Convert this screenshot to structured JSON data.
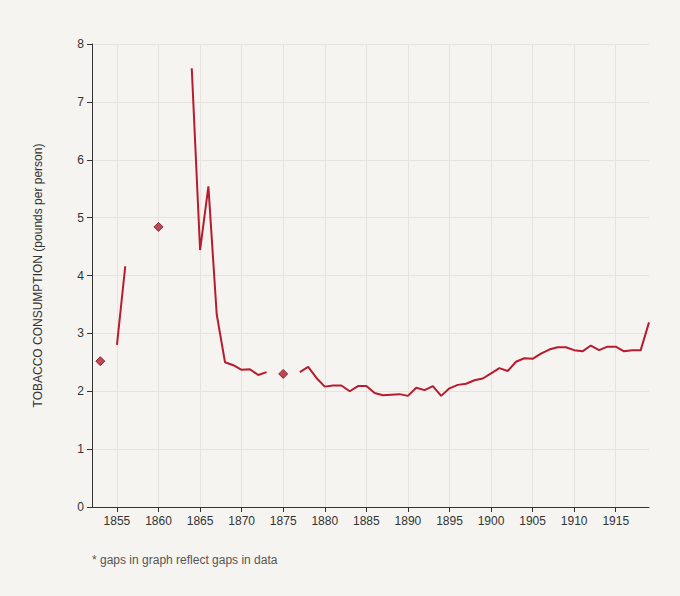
{
  "chart_data": {
    "type": "line",
    "y_label": "TOBACCO CONSUMPTION (pounds per person)",
    "note": "* gaps in graph reflect gaps in data",
    "x": [
      1853,
      1854,
      1855,
      1856,
      1857,
      1858,
      1859,
      1860,
      1861,
      1862,
      1863,
      1864,
      1865,
      1866,
      1867,
      1868,
      1869,
      1870,
      1871,
      1872,
      1873,
      1874,
      1875,
      1876,
      1877,
      1878,
      1879,
      1880,
      1881,
      1882,
      1883,
      1884,
      1885,
      1886,
      1887,
      1888,
      1889,
      1890,
      1891,
      1892,
      1893,
      1894,
      1895,
      1896,
      1897,
      1898,
      1899,
      1900,
      1901,
      1902,
      1903,
      1904,
      1905,
      1906,
      1907,
      1908,
      1909,
      1910,
      1911,
      1912,
      1913,
      1914,
      1915,
      1916,
      1917,
      1918,
      1919
    ],
    "series": [
      {
        "type": "line",
        "marker": "none",
        "line_style": "solid",
        "color": "#b71c2e",
        "values": [
          null,
          null,
          2.8,
          4.16,
          null,
          null,
          null,
          null,
          null,
          null,
          null,
          7.58,
          4.44,
          5.54,
          3.33,
          2.5,
          2.45,
          2.37,
          2.38,
          2.28,
          2.33,
          null,
          null,
          null,
          2.33,
          2.42,
          2.23,
          2.08,
          2.1,
          2.1,
          2.0,
          2.09,
          2.09,
          1.97,
          1.93,
          1.94,
          1.95,
          1.92,
          2.06,
          2.02,
          2.09,
          1.92,
          2.05,
          2.11,
          2.13,
          2.19,
          2.22,
          2.31,
          2.4,
          2.35,
          2.51,
          2.57,
          2.56,
          2.65,
          2.72,
          2.76,
          2.76,
          2.71,
          2.69,
          2.79,
          2.71,
          2.77,
          2.77,
          2.69,
          2.71,
          2.71,
          3.19
        ]
      },
      {
        "type": "scatter",
        "marker": "diamond",
        "color": "#b71c2e",
        "values": [
          2.52,
          null,
          null,
          null,
          null,
          null,
          null,
          4.84,
          null,
          null,
          null,
          null,
          null,
          null,
          null,
          null,
          null,
          null,
          null,
          null,
          null,
          null,
          2.3,
          null,
          null,
          null,
          null,
          null,
          null,
          null,
          null,
          null,
          null,
          null,
          null,
          null,
          null,
          null,
          null,
          null,
          null,
          null,
          null,
          null,
          null,
          null,
          null,
          null,
          null,
          null,
          null,
          null,
          null,
          null,
          null,
          null,
          null,
          null,
          null,
          null,
          null,
          null,
          null,
          null,
          null,
          null,
          null
        ]
      }
    ],
    "xlim": [
      1852,
      1919
    ],
    "xticks": [
      1855,
      1860,
      1865,
      1870,
      1875,
      1880,
      1885,
      1890,
      1895,
      1900,
      1905,
      1910,
      1915
    ],
    "ylim": [
      0,
      8
    ],
    "yticks": [
      0,
      1,
      2,
      3,
      4,
      5,
      6,
      7,
      8
    ],
    "grid": true
  }
}
